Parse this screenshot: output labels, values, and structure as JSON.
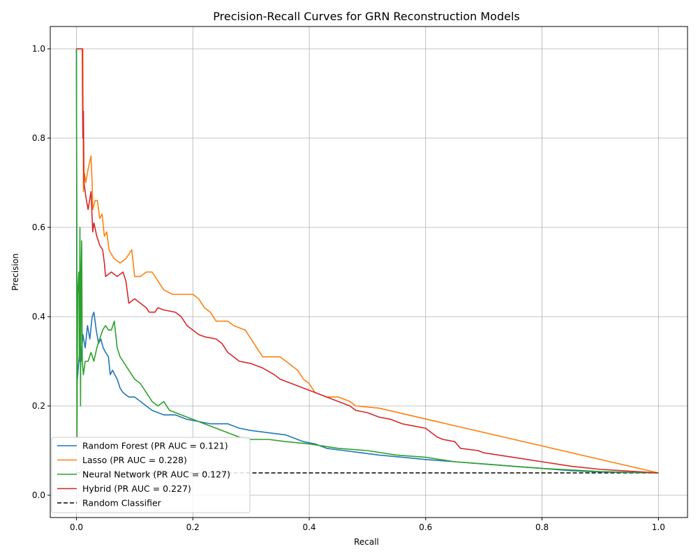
{
  "chart_data": {
    "type": "line",
    "title": "Precision-Recall Curves for GRN Reconstruction Models",
    "xlabel": "Recall",
    "ylabel": "Precision",
    "xlim": [
      -0.045,
      1.05
    ],
    "ylim": [
      -0.05,
      1.05
    ],
    "xticks": [
      0.0,
      0.2,
      0.4,
      0.6,
      0.8,
      1.0
    ],
    "yticks": [
      0.0,
      0.2,
      0.4,
      0.6,
      0.8,
      1.0
    ],
    "xtick_labels": [
      "0.0",
      "0.2",
      "0.4",
      "0.6",
      "0.8",
      "1.0"
    ],
    "ytick_labels": [
      "0.0",
      "0.2",
      "0.4",
      "0.6",
      "0.8",
      "1.0"
    ],
    "grid": true,
    "legend_position": "lower-left",
    "series": [
      {
        "name": "Random Forest (PR AUC = 0.121)",
        "color": "#1f77b4",
        "style": "solid",
        "points": [
          [
            0.0,
            1.0
          ],
          [
            0.001,
            0.25
          ],
          [
            0.004,
            0.3
          ],
          [
            0.006,
            0.33
          ],
          [
            0.008,
            0.3
          ],
          [
            0.011,
            0.36
          ],
          [
            0.015,
            0.33
          ],
          [
            0.019,
            0.38
          ],
          [
            0.023,
            0.35
          ],
          [
            0.027,
            0.4
          ],
          [
            0.03,
            0.41
          ],
          [
            0.034,
            0.37
          ],
          [
            0.038,
            0.34
          ],
          [
            0.042,
            0.35
          ],
          [
            0.046,
            0.33
          ],
          [
            0.05,
            0.32
          ],
          [
            0.055,
            0.31
          ],
          [
            0.058,
            0.27
          ],
          [
            0.062,
            0.28
          ],
          [
            0.066,
            0.27
          ],
          [
            0.07,
            0.26
          ],
          [
            0.075,
            0.24
          ],
          [
            0.08,
            0.23
          ],
          [
            0.09,
            0.22
          ],
          [
            0.1,
            0.22
          ],
          [
            0.11,
            0.21
          ],
          [
            0.12,
            0.2
          ],
          [
            0.13,
            0.19
          ],
          [
            0.15,
            0.18
          ],
          [
            0.17,
            0.18
          ],
          [
            0.19,
            0.17
          ],
          [
            0.21,
            0.165
          ],
          [
            0.23,
            0.16
          ],
          [
            0.26,
            0.16
          ],
          [
            0.28,
            0.15
          ],
          [
            0.3,
            0.145
          ],
          [
            0.33,
            0.14
          ],
          [
            0.36,
            0.135
          ],
          [
            0.39,
            0.12
          ],
          [
            0.41,
            0.115
          ],
          [
            0.43,
            0.105
          ],
          [
            0.46,
            0.1
          ],
          [
            0.49,
            0.095
          ],
          [
            0.52,
            0.09
          ],
          [
            0.56,
            0.085
          ],
          [
            0.6,
            0.08
          ],
          [
            0.65,
            0.075
          ],
          [
            0.7,
            0.07
          ],
          [
            0.75,
            0.065
          ],
          [
            0.8,
            0.06
          ],
          [
            0.85,
            0.055
          ],
          [
            0.9,
            0.052
          ],
          [
            1.0,
            0.05
          ]
        ]
      },
      {
        "name": "Lasso (PR AUC = 0.228)",
        "color": "#ff7f0e",
        "style": "solid",
        "points": [
          [
            0.001,
            1.0
          ],
          [
            0.009,
            1.0
          ],
          [
            0.011,
            1.0
          ],
          [
            0.012,
            0.68
          ],
          [
            0.014,
            0.72
          ],
          [
            0.016,
            0.7
          ],
          [
            0.02,
            0.73
          ],
          [
            0.025,
            0.76
          ],
          [
            0.027,
            0.7
          ],
          [
            0.028,
            0.64
          ],
          [
            0.032,
            0.66
          ],
          [
            0.036,
            0.66
          ],
          [
            0.04,
            0.62
          ],
          [
            0.044,
            0.63
          ],
          [
            0.048,
            0.58
          ],
          [
            0.052,
            0.59
          ],
          [
            0.056,
            0.55
          ],
          [
            0.06,
            0.54
          ],
          [
            0.065,
            0.53
          ],
          [
            0.075,
            0.52
          ],
          [
            0.085,
            0.53
          ],
          [
            0.095,
            0.55
          ],
          [
            0.1,
            0.49
          ],
          [
            0.11,
            0.49
          ],
          [
            0.12,
            0.5
          ],
          [
            0.13,
            0.5
          ],
          [
            0.14,
            0.48
          ],
          [
            0.15,
            0.46
          ],
          [
            0.165,
            0.45
          ],
          [
            0.18,
            0.45
          ],
          [
            0.2,
            0.45
          ],
          [
            0.21,
            0.44
          ],
          [
            0.22,
            0.42
          ],
          [
            0.23,
            0.41
          ],
          [
            0.24,
            0.39
          ],
          [
            0.26,
            0.39
          ],
          [
            0.27,
            0.38
          ],
          [
            0.29,
            0.37
          ],
          [
            0.3,
            0.35
          ],
          [
            0.31,
            0.33
          ],
          [
            0.32,
            0.31
          ],
          [
            0.33,
            0.31
          ],
          [
            0.35,
            0.31
          ],
          [
            0.37,
            0.29
          ],
          [
            0.38,
            0.28
          ],
          [
            0.39,
            0.26
          ],
          [
            0.4,
            0.25
          ],
          [
            0.41,
            0.23
          ],
          [
            0.43,
            0.22
          ],
          [
            0.45,
            0.22
          ],
          [
            0.47,
            0.21
          ],
          [
            0.48,
            0.2
          ],
          [
            0.52,
            0.195
          ],
          [
            1.0,
            0.05
          ]
        ]
      },
      {
        "name": "Neural Network (PR AUC = 0.127)",
        "color": "#2ca02c",
        "style": "solid",
        "points": [
          [
            0.0,
            1.0
          ],
          [
            0.001,
            0.13
          ],
          [
            0.002,
            0.45
          ],
          [
            0.004,
            0.5
          ],
          [
            0.005,
            0.3
          ],
          [
            0.006,
            0.6
          ],
          [
            0.007,
            0.2
          ],
          [
            0.008,
            0.5
          ],
          [
            0.009,
            0.57
          ],
          [
            0.01,
            0.3
          ],
          [
            0.012,
            0.27
          ],
          [
            0.015,
            0.3
          ],
          [
            0.02,
            0.3
          ],
          [
            0.025,
            0.32
          ],
          [
            0.03,
            0.3
          ],
          [
            0.035,
            0.33
          ],
          [
            0.04,
            0.35
          ],
          [
            0.045,
            0.37
          ],
          [
            0.05,
            0.38
          ],
          [
            0.055,
            0.37
          ],
          [
            0.06,
            0.37
          ],
          [
            0.065,
            0.39
          ],
          [
            0.07,
            0.33
          ],
          [
            0.075,
            0.31
          ],
          [
            0.08,
            0.3
          ],
          [
            0.09,
            0.28
          ],
          [
            0.1,
            0.26
          ],
          [
            0.11,
            0.25
          ],
          [
            0.12,
            0.23
          ],
          [
            0.13,
            0.21
          ],
          [
            0.14,
            0.2
          ],
          [
            0.15,
            0.21
          ],
          [
            0.16,
            0.19
          ],
          [
            0.18,
            0.18
          ],
          [
            0.2,
            0.17
          ],
          [
            0.22,
            0.16
          ],
          [
            0.24,
            0.15
          ],
          [
            0.26,
            0.14
          ],
          [
            0.28,
            0.13
          ],
          [
            0.3,
            0.125
          ],
          [
            0.33,
            0.125
          ],
          [
            0.36,
            0.12
          ],
          [
            0.4,
            0.115
          ],
          [
            0.45,
            0.105
          ],
          [
            0.5,
            0.1
          ],
          [
            0.55,
            0.09
          ],
          [
            0.6,
            0.085
          ],
          [
            0.65,
            0.075
          ],
          [
            0.7,
            0.07
          ],
          [
            0.75,
            0.065
          ],
          [
            0.8,
            0.06
          ],
          [
            0.9,
            0.053
          ],
          [
            1.0,
            0.05
          ]
        ]
      },
      {
        "name": "Hybrid (PR AUC = 0.227)",
        "color": "#d62728",
        "style": "solid",
        "points": [
          [
            0.0,
            1.0
          ],
          [
            0.01,
            1.0
          ],
          [
            0.011,
            0.8
          ],
          [
            0.012,
            0.86
          ],
          [
            0.013,
            0.7
          ],
          [
            0.016,
            0.67
          ],
          [
            0.02,
            0.64
          ],
          [
            0.025,
            0.68
          ],
          [
            0.028,
            0.59
          ],
          [
            0.03,
            0.61
          ],
          [
            0.035,
            0.58
          ],
          [
            0.04,
            0.56
          ],
          [
            0.045,
            0.55
          ],
          [
            0.048,
            0.52
          ],
          [
            0.05,
            0.49
          ],
          [
            0.06,
            0.5
          ],
          [
            0.07,
            0.49
          ],
          [
            0.08,
            0.5
          ],
          [
            0.085,
            0.48
          ],
          [
            0.09,
            0.43
          ],
          [
            0.1,
            0.44
          ],
          [
            0.11,
            0.43
          ],
          [
            0.12,
            0.42
          ],
          [
            0.125,
            0.41
          ],
          [
            0.135,
            0.41
          ],
          [
            0.14,
            0.42
          ],
          [
            0.15,
            0.415
          ],
          [
            0.17,
            0.41
          ],
          [
            0.18,
            0.4
          ],
          [
            0.19,
            0.38
          ],
          [
            0.2,
            0.37
          ],
          [
            0.21,
            0.36
          ],
          [
            0.22,
            0.355
          ],
          [
            0.24,
            0.35
          ],
          [
            0.25,
            0.34
          ],
          [
            0.26,
            0.32
          ],
          [
            0.27,
            0.31
          ],
          [
            0.28,
            0.3
          ],
          [
            0.3,
            0.295
          ],
          [
            0.32,
            0.285
          ],
          [
            0.34,
            0.27
          ],
          [
            0.35,
            0.26
          ],
          [
            0.37,
            0.25
          ],
          [
            0.39,
            0.24
          ],
          [
            0.41,
            0.23
          ],
          [
            0.43,
            0.22
          ],
          [
            0.45,
            0.21
          ],
          [
            0.47,
            0.2
          ],
          [
            0.48,
            0.19
          ],
          [
            0.5,
            0.185
          ],
          [
            0.52,
            0.175
          ],
          [
            0.54,
            0.17
          ],
          [
            0.56,
            0.16
          ],
          [
            0.58,
            0.155
          ],
          [
            0.6,
            0.15
          ],
          [
            0.61,
            0.14
          ],
          [
            0.62,
            0.13
          ],
          [
            0.63,
            0.125
          ],
          [
            0.65,
            0.12
          ],
          [
            0.66,
            0.105
          ],
          [
            0.69,
            0.1
          ],
          [
            0.7,
            0.095
          ],
          [
            0.75,
            0.085
          ],
          [
            0.8,
            0.075
          ],
          [
            0.85,
            0.065
          ],
          [
            0.9,
            0.058
          ],
          [
            1.0,
            0.05
          ]
        ]
      },
      {
        "name": "Random Classifier",
        "color": "#000000",
        "style": "dashed",
        "points": [
          [
            0.0,
            0.05
          ],
          [
            1.0,
            0.05
          ]
        ]
      }
    ]
  }
}
